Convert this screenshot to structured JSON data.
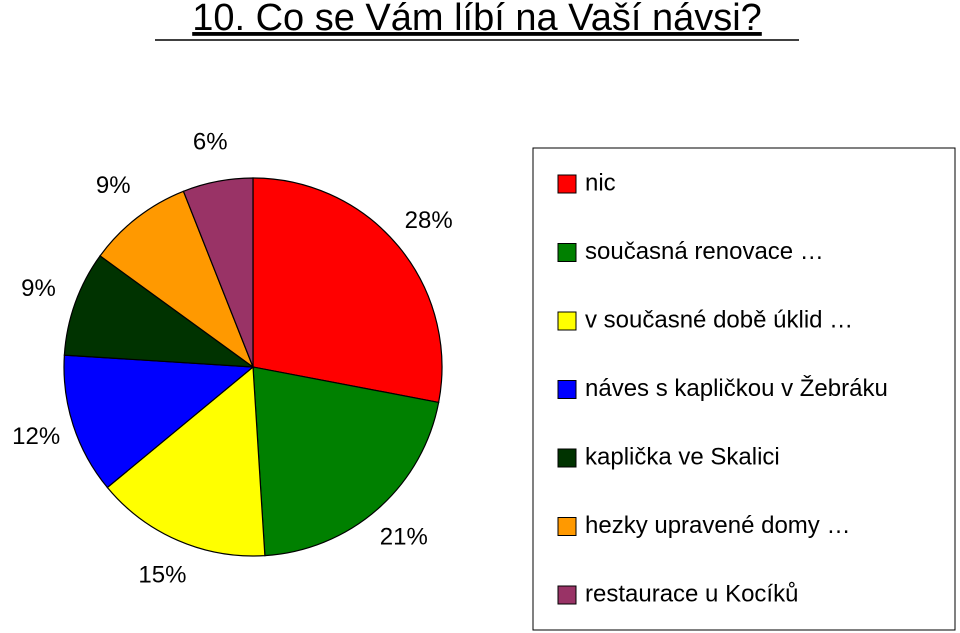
{
  "chart_data": {
    "type": "pie",
    "title": "10. Co se Vám líbí na Vaší návsi?",
    "categories": [
      "nic",
      "současná renovace …",
      "v současné době úklid …",
      "náves s kapličkou v Žebráku",
      "kaplička ve Skalici",
      "hezky upravené domy …",
      "restaurace u Kocíků"
    ],
    "values": [
      28,
      21,
      15,
      12,
      9,
      9,
      6
    ],
    "value_labels": [
      "28%",
      "21%",
      "15%",
      "12%",
      "9%",
      "9%",
      "6%"
    ],
    "colors": [
      "#ff0000",
      "#008000",
      "#ffff00",
      "#0000ff",
      "#003300",
      "#ff9900",
      "#993366"
    ],
    "legend": "right"
  }
}
